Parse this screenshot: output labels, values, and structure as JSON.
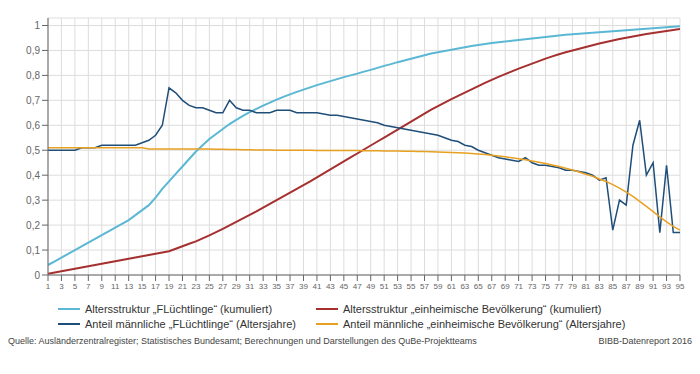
{
  "chart_data": {
    "type": "line",
    "x": [
      1,
      2,
      3,
      4,
      5,
      6,
      7,
      8,
      9,
      10,
      11,
      12,
      13,
      14,
      15,
      16,
      17,
      18,
      19,
      20,
      21,
      22,
      23,
      24,
      25,
      26,
      27,
      28,
      29,
      30,
      31,
      32,
      33,
      34,
      35,
      36,
      37,
      38,
      39,
      40,
      41,
      42,
      43,
      44,
      45,
      46,
      47,
      48,
      49,
      50,
      51,
      52,
      53,
      54,
      55,
      56,
      57,
      58,
      59,
      60,
      61,
      62,
      63,
      64,
      65,
      66,
      67,
      68,
      69,
      70,
      71,
      72,
      73,
      74,
      75,
      76,
      77,
      78,
      79,
      80,
      81,
      82,
      83,
      84,
      85,
      86,
      87,
      88,
      89,
      90,
      91,
      92,
      93,
      94,
      95
    ],
    "series": [
      {
        "name": "Altersstruktur „FLüchtlinge“ (kumuliert)",
        "color": "#5BB8D4",
        "values": [
          0.04,
          0.055,
          0.07,
          0.085,
          0.1,
          0.115,
          0.13,
          0.145,
          0.16,
          0.175,
          0.19,
          0.205,
          0.22,
          0.24,
          0.26,
          0.28,
          0.31,
          0.345,
          0.375,
          0.405,
          0.435,
          0.465,
          0.495,
          0.52,
          0.545,
          0.565,
          0.585,
          0.605,
          0.622,
          0.638,
          0.653,
          0.666,
          0.679,
          0.691,
          0.703,
          0.714,
          0.724,
          0.734,
          0.743,
          0.752,
          0.761,
          0.769,
          0.777,
          0.785,
          0.793,
          0.8,
          0.807,
          0.815,
          0.822,
          0.83,
          0.838,
          0.845,
          0.853,
          0.86,
          0.867,
          0.874,
          0.881,
          0.888,
          0.893,
          0.898,
          0.903,
          0.908,
          0.913,
          0.918,
          0.922,
          0.926,
          0.93,
          0.933,
          0.936,
          0.939,
          0.942,
          0.945,
          0.948,
          0.951,
          0.954,
          0.957,
          0.96,
          0.963,
          0.965,
          0.967,
          0.969,
          0.971,
          0.973,
          0.975,
          0.977,
          0.979,
          0.981,
          0.983,
          0.985,
          0.987,
          0.989,
          0.991,
          0.993,
          0.995,
          0.997
        ]
      },
      {
        "name": "Altersstruktur „einheimische Bevölkerung“ (kumuliert)",
        "color": "#A63030",
        "values": [
          0.005,
          0.01,
          0.015,
          0.02,
          0.025,
          0.03,
          0.035,
          0.04,
          0.045,
          0.05,
          0.055,
          0.06,
          0.065,
          0.07,
          0.075,
          0.08,
          0.085,
          0.09,
          0.095,
          0.105,
          0.115,
          0.125,
          0.135,
          0.147,
          0.159,
          0.172,
          0.185,
          0.199,
          0.213,
          0.227,
          0.241,
          0.255,
          0.27,
          0.285,
          0.3,
          0.315,
          0.33,
          0.345,
          0.36,
          0.375,
          0.391,
          0.407,
          0.423,
          0.439,
          0.455,
          0.471,
          0.487,
          0.503,
          0.519,
          0.535,
          0.551,
          0.567,
          0.583,
          0.599,
          0.615,
          0.631,
          0.647,
          0.663,
          0.677,
          0.691,
          0.705,
          0.718,
          0.731,
          0.744,
          0.757,
          0.77,
          0.782,
          0.794,
          0.805,
          0.816,
          0.827,
          0.837,
          0.847,
          0.857,
          0.867,
          0.876,
          0.885,
          0.893,
          0.9,
          0.907,
          0.914,
          0.921,
          0.928,
          0.934,
          0.94,
          0.946,
          0.951,
          0.956,
          0.961,
          0.966,
          0.97,
          0.974,
          0.978,
          0.982,
          0.986
        ]
      },
      {
        "name": "Anteil männliche „FLüchtlinge“ (Altersjahre)",
        "color": "#1F4E79",
        "values": [
          0.5,
          0.5,
          0.5,
          0.5,
          0.5,
          0.51,
          0.51,
          0.51,
          0.52,
          0.52,
          0.52,
          0.52,
          0.52,
          0.52,
          0.53,
          0.54,
          0.56,
          0.6,
          0.75,
          0.73,
          0.7,
          0.68,
          0.67,
          0.67,
          0.66,
          0.65,
          0.65,
          0.7,
          0.67,
          0.66,
          0.66,
          0.65,
          0.65,
          0.65,
          0.66,
          0.66,
          0.66,
          0.65,
          0.65,
          0.65,
          0.65,
          0.645,
          0.64,
          0.64,
          0.635,
          0.63,
          0.625,
          0.62,
          0.615,
          0.61,
          0.6,
          0.595,
          0.59,
          0.585,
          0.58,
          0.575,
          0.57,
          0.565,
          0.56,
          0.55,
          0.54,
          0.535,
          0.52,
          0.515,
          0.5,
          0.49,
          0.48,
          0.47,
          0.465,
          0.46,
          0.455,
          0.47,
          0.45,
          0.44,
          0.44,
          0.435,
          0.43,
          0.42,
          0.42,
          0.415,
          0.41,
          0.4,
          0.38,
          0.39,
          0.18,
          0.3,
          0.28,
          0.52,
          0.62,
          0.4,
          0.45,
          0.17,
          0.44,
          0.17,
          0.17
        ]
      },
      {
        "name": "Anteil männliche „einheimische Bevölkerung“ (Altersjahre)",
        "color": "#E8A020",
        "values": [
          0.51,
          0.51,
          0.51,
          0.51,
          0.51,
          0.51,
          0.51,
          0.51,
          0.51,
          0.51,
          0.51,
          0.51,
          0.51,
          0.51,
          0.51,
          0.505,
          0.505,
          0.505,
          0.505,
          0.505,
          0.505,
          0.505,
          0.505,
          0.505,
          0.505,
          0.504,
          0.504,
          0.503,
          0.503,
          0.502,
          0.502,
          0.501,
          0.501,
          0.501,
          0.5,
          0.5,
          0.5,
          0.5,
          0.5,
          0.5,
          0.499,
          0.499,
          0.499,
          0.499,
          0.499,
          0.499,
          0.499,
          0.498,
          0.498,
          0.498,
          0.497,
          0.497,
          0.497,
          0.496,
          0.496,
          0.495,
          0.495,
          0.494,
          0.493,
          0.492,
          0.491,
          0.49,
          0.489,
          0.487,
          0.485,
          0.483,
          0.48,
          0.477,
          0.474,
          0.47,
          0.466,
          0.462,
          0.457,
          0.452,
          0.447,
          0.441,
          0.435,
          0.428,
          0.421,
          0.413,
          0.404,
          0.396,
          0.385,
          0.375,
          0.362,
          0.348,
          0.332,
          0.315,
          0.295,
          0.275,
          0.254,
          0.233,
          0.213,
          0.195,
          0.18
        ]
      }
    ],
    "xlim": [
      1,
      95
    ],
    "ylim": [
      0,
      1.03
    ],
    "xticks": [
      1,
      3,
      5,
      7,
      9,
      11,
      13,
      15,
      17,
      19,
      21,
      23,
      25,
      27,
      29,
      31,
      33,
      35,
      37,
      39,
      41,
      43,
      45,
      47,
      49,
      51,
      53,
      55,
      57,
      59,
      61,
      63,
      65,
      67,
      69,
      71,
      73,
      75,
      77,
      79,
      81,
      83,
      85,
      87,
      89,
      91,
      93,
      95
    ],
    "yticks": [
      0,
      {
        "value": 0.1,
        "label": "0,1"
      },
      {
        "value": 0.2,
        "label": "0,2"
      },
      {
        "value": 0.3,
        "label": "0,3"
      },
      {
        "value": 0.4,
        "label": "0,4"
      },
      {
        "value": 0.5,
        "label": "0,5"
      },
      {
        "value": 0.6,
        "label": "0,6"
      },
      {
        "value": 0.7,
        "label": "0,7"
      },
      {
        "value": 0.8,
        "label": "0,8"
      },
      {
        "value": 0.9,
        "label": "0,9"
      },
      1
    ],
    "grid": true,
    "legend": "lower left",
    "annotations": [
      "Quelle: Ausländerzentralregister; Statistisches Bundesamt; Berechnungen und Darstellungen des QuBe-Projektteams",
      "BIBB-Datenreport 2016"
    ]
  }
}
